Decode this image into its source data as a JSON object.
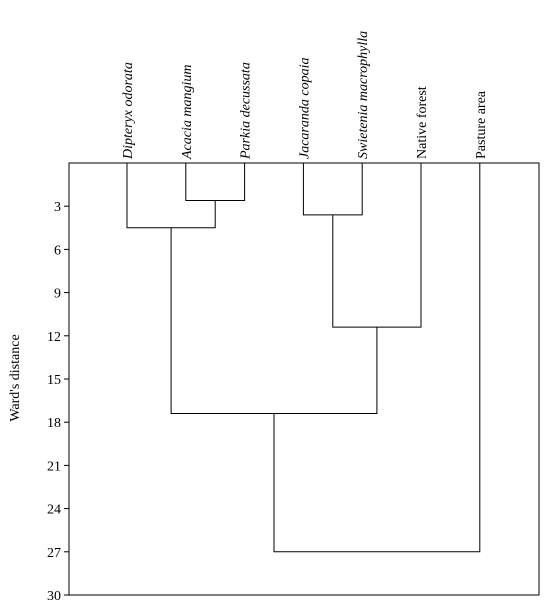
{
  "chart_data": {
    "type": "dendrogram",
    "ylabel": "Ward's distance",
    "ylim": [
      0,
      30
    ],
    "y_inverted": true,
    "yticks": [
      3,
      6,
      9,
      12,
      15,
      18,
      21,
      24,
      27,
      30
    ],
    "leaves": [
      {
        "label": "Dipteryx odorata",
        "italic": true
      },
      {
        "label": "Acacia mangium",
        "italic": true
      },
      {
        "label": "Parkia decussata",
        "italic": true
      },
      {
        "label": "Jacaranda copaia",
        "italic": true
      },
      {
        "label": "Swietenia macrophylla",
        "italic": true
      },
      {
        "label": "Native forest",
        "italic": false
      },
      {
        "label": "Pasture area",
        "italic": false
      }
    ],
    "merges": [
      {
        "id": "m1",
        "left": 1,
        "right": 2,
        "height": 2.6
      },
      {
        "id": "m2",
        "left": 0,
        "right": "m1",
        "height": 4.5
      },
      {
        "id": "m3",
        "left": 3,
        "right": 4,
        "height": 3.6
      },
      {
        "id": "m4",
        "left": "m3",
        "right": 5,
        "height": 11.4
      },
      {
        "id": "m5",
        "left": "m2",
        "right": "m4",
        "height": 17.4
      },
      {
        "id": "m6",
        "left": "m5",
        "right": 6,
        "height": 27.0
      }
    ],
    "grid": false
  }
}
